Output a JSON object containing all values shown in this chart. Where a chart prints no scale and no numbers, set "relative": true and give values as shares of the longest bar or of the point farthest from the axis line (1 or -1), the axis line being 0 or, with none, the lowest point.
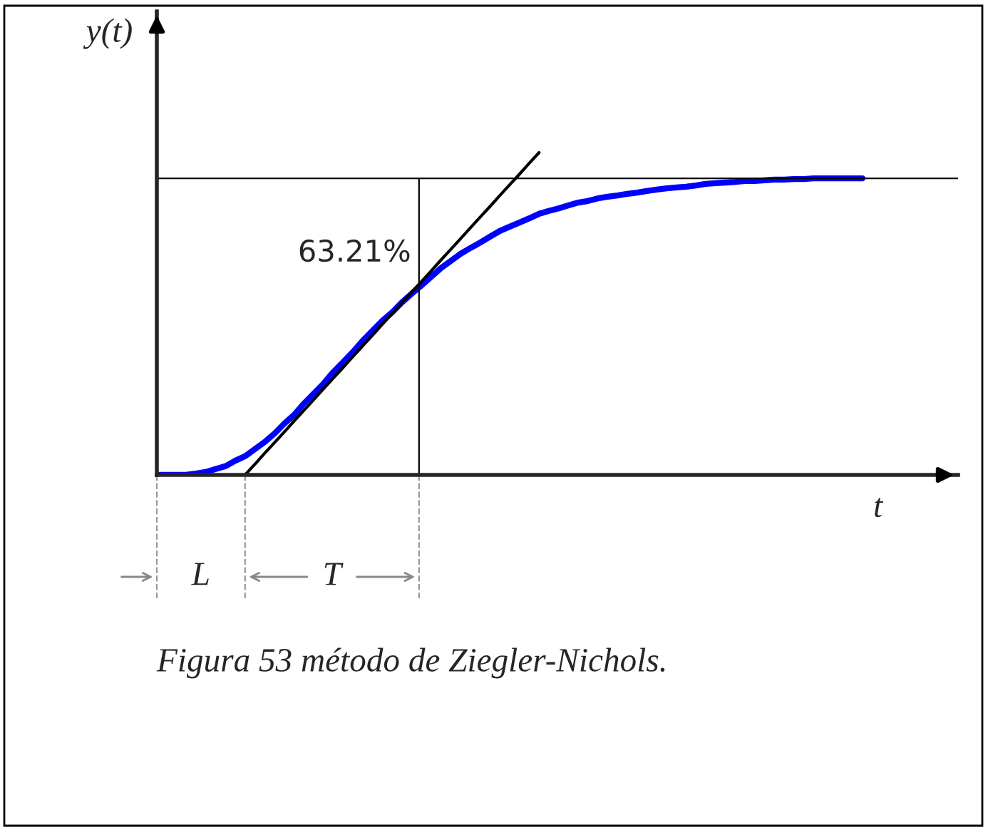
{
  "chart_data": {
    "type": "line",
    "relative": true,
    "xlabel": "t",
    "ylabel": "y(t)",
    "marker": "none",
    "line_style": "solid",
    "categories": [
      null,
      null,
      null,
      null,
      null,
      null,
      null,
      null,
      null,
      null,
      null,
      null,
      null,
      null,
      null,
      null,
      null,
      null,
      null,
      null,
      null,
      null,
      null,
      null,
      null,
      null,
      null,
      null,
      null,
      null,
      null,
      null,
      null,
      null,
      null,
      null,
      null,
      null,
      null,
      null,
      null,
      null,
      null,
      null,
      null,
      null,
      null,
      null,
      null,
      null,
      null,
      null,
      null,
      null,
      null,
      null,
      null,
      null,
      null,
      null,
      null,
      null,
      null,
      null,
      null,
      null,
      null,
      null,
      null,
      null,
      null,
      null,
      null,
      null,
      null,
      null,
      null,
      null,
      null,
      null,
      null
    ],
    "series": [
      {
        "color": "#0000ff",
        "values": [
          0,
          0,
          0,
          0,
          0.004,
          0.009,
          0.018,
          0.027,
          0.044,
          0.058,
          0.08,
          0.102,
          0.128,
          0.159,
          0.186,
          0.221,
          0.252,
          0.283,
          0.319,
          0.35,
          0.381,
          0.416,
          0.447,
          0.478,
          0.504,
          0.535,
          0.562,
          0.588,
          0.615,
          0.642,
          0.664,
          0.686,
          0.704,
          0.721,
          0.739,
          0.757,
          0.77,
          0.783,
          0.796,
          0.81,
          0.819,
          0.827,
          0.836,
          0.845,
          0.85,
          0.858,
          0.863,
          0.867,
          0.872,
          0.876,
          0.881,
          0.885,
          0.889,
          0.892,
          0.894,
          0.898,
          0.903,
          0.905,
          0.907,
          0.909,
          0.912,
          0.912,
          0.914,
          0.916,
          0.916,
          0.918,
          0.918,
          0.92,
          0.92,
          0.92,
          0.92,
          0.92,
          0.92,
          null,
          null,
          null,
          null,
          null,
          null,
          null,
          null
        ]
      },
      {
        "color": "#000000",
        "values": [
          null,
          null,
          null,
          null,
          null,
          null,
          null,
          null,
          null,
          0,
          0.033,
          0.067,
          0.1,
          0.133,
          0.167,
          0.2,
          0.233,
          0.267,
          0.3,
          0.333,
          0.367,
          0.4,
          0.433,
          0.467,
          0.5,
          0.533,
          0.567,
          0.6,
          0.633,
          0.667,
          0.7,
          0.733,
          0.767,
          0.8,
          0.833,
          0.867,
          0.9,
          0.933,
          0.967,
          1,
          null,
          null,
          null,
          null,
          null,
          null,
          null,
          null,
          null,
          null,
          null,
          null,
          null,
          null,
          null,
          null,
          null,
          null,
          null,
          null,
          null,
          null,
          null,
          null,
          null,
          null,
          null,
          null,
          null,
          null,
          null,
          null,
          null,
          null,
          null,
          null,
          null,
          null,
          null,
          null,
          null
        ]
      }
    ],
    "annotations": [
      "63.21%",
      "L",
      "T",
      "Figura 53 método de Ziegler-Nichols."
    ]
  }
}
